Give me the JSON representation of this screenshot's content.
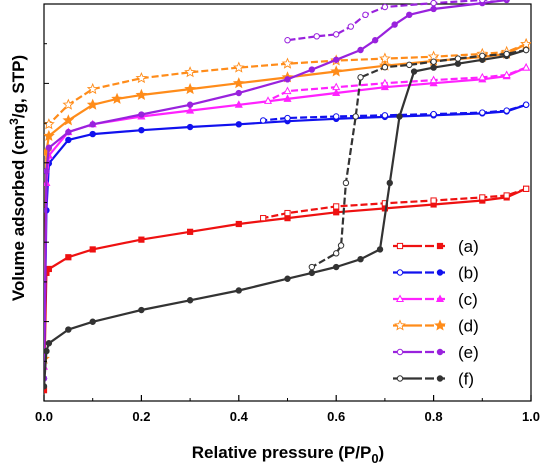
{
  "chart_data": {
    "type": "line",
    "xlabel": "Relative pressure (P/P0)",
    "ylabel": "Volume adsorbed (cm3/g, STP)",
    "xlim": [
      0.0,
      1.0
    ],
    "ylim": [
      0,
      100
    ],
    "y_tick_labels_shown": false,
    "x_ticks": [
      "0.0",
      "0.2",
      "0.4",
      "0.6",
      "0.8",
      "1.0"
    ],
    "legend_position": "bottom-right",
    "series": [
      {
        "name": "(a)",
        "color": "#ee1111",
        "marker": "square",
        "adsorption": [
          [
            0.0,
            2
          ],
          [
            0.005,
            32
          ],
          [
            0.01,
            33
          ],
          [
            0.05,
            36
          ],
          [
            0.1,
            38
          ],
          [
            0.2,
            40.5
          ],
          [
            0.3,
            42.5
          ],
          [
            0.4,
            44.5
          ],
          [
            0.5,
            46
          ],
          [
            0.6,
            47.5
          ],
          [
            0.7,
            48.5
          ],
          [
            0.8,
            49.5
          ],
          [
            0.9,
            50.5
          ],
          [
            0.95,
            51.3
          ],
          [
            0.99,
            53.5
          ]
        ],
        "desorption": [
          [
            0.99,
            53.5
          ],
          [
            0.95,
            51.8
          ],
          [
            0.9,
            51.3
          ],
          [
            0.8,
            50.5
          ],
          [
            0.7,
            49.8
          ],
          [
            0.6,
            49
          ],
          [
            0.5,
            47.3
          ],
          [
            0.45,
            46
          ]
        ]
      },
      {
        "name": "(b)",
        "color": "#1111ee",
        "marker": "circle",
        "adsorption": [
          [
            0.0,
            5
          ],
          [
            0.005,
            48
          ],
          [
            0.01,
            60
          ],
          [
            0.05,
            66
          ],
          [
            0.1,
            67.5
          ],
          [
            0.2,
            68.5
          ],
          [
            0.3,
            69.3
          ],
          [
            0.4,
            70
          ],
          [
            0.5,
            70.8
          ],
          [
            0.6,
            71.4
          ],
          [
            0.7,
            71.9
          ],
          [
            0.8,
            72.3
          ],
          [
            0.9,
            72.8
          ],
          [
            0.95,
            73.3
          ],
          [
            0.99,
            75
          ]
        ],
        "desorption": [
          [
            0.99,
            75
          ],
          [
            0.95,
            73.5
          ],
          [
            0.9,
            73
          ],
          [
            0.8,
            72.6
          ],
          [
            0.7,
            72.3
          ],
          [
            0.6,
            72
          ],
          [
            0.5,
            71.6
          ],
          [
            0.45,
            71
          ]
        ]
      },
      {
        "name": "(c)",
        "color": "#ff22ff",
        "marker": "triangle",
        "adsorption": [
          [
            0.0,
            8
          ],
          [
            0.005,
            55
          ],
          [
            0.01,
            62
          ],
          [
            0.05,
            68
          ],
          [
            0.1,
            70
          ],
          [
            0.2,
            72
          ],
          [
            0.3,
            73.5
          ],
          [
            0.4,
            75
          ],
          [
            0.5,
            76.5
          ],
          [
            0.6,
            78
          ],
          [
            0.7,
            79.5
          ],
          [
            0.8,
            80.5
          ],
          [
            0.9,
            81.5
          ],
          [
            0.95,
            82.3
          ],
          [
            0.99,
            84.5
          ]
        ],
        "desorption": [
          [
            0.99,
            84.5
          ],
          [
            0.95,
            82.6
          ],
          [
            0.9,
            82
          ],
          [
            0.8,
            81.3
          ],
          [
            0.7,
            80.5
          ],
          [
            0.6,
            79.5
          ],
          [
            0.5,
            78.5
          ],
          [
            0.46,
            76
          ]
        ]
      },
      {
        "name": "(d)",
        "color": "#ff8c1a",
        "marker": "star",
        "adsorption": [
          [
            0.0,
            10
          ],
          [
            0.005,
            63
          ],
          [
            0.01,
            67
          ],
          [
            0.05,
            71
          ],
          [
            0.1,
            75
          ],
          [
            0.15,
            76.5
          ],
          [
            0.2,
            77.5
          ],
          [
            0.3,
            79
          ],
          [
            0.4,
            80.5
          ],
          [
            0.5,
            82
          ],
          [
            0.6,
            83.5
          ],
          [
            0.7,
            85
          ],
          [
            0.8,
            86.2
          ],
          [
            0.9,
            87.2
          ],
          [
            0.95,
            88
          ],
          [
            0.99,
            90.5
          ]
        ],
        "desorption": [
          [
            0.99,
            90.5
          ],
          [
            0.95,
            88.5
          ],
          [
            0.9,
            88
          ],
          [
            0.8,
            87.3
          ],
          [
            0.7,
            86.8
          ],
          [
            0.6,
            86.3
          ],
          [
            0.5,
            85.5
          ],
          [
            0.4,
            84.5
          ],
          [
            0.3,
            83.3
          ],
          [
            0.2,
            81.8
          ],
          [
            0.1,
            79
          ],
          [
            0.05,
            75
          ],
          [
            0.01,
            70
          ]
        ]
      },
      {
        "name": "(e)",
        "color": "#9922dd",
        "marker": "circle",
        "adsorption": [
          [
            0.0,
            5
          ],
          [
            0.005,
            58
          ],
          [
            0.01,
            64
          ],
          [
            0.05,
            68
          ],
          [
            0.1,
            70
          ],
          [
            0.2,
            72.5
          ],
          [
            0.3,
            75
          ],
          [
            0.4,
            78
          ],
          [
            0.5,
            81.5
          ],
          [
            0.55,
            84
          ],
          [
            0.6,
            86.5
          ],
          [
            0.65,
            89
          ],
          [
            0.68,
            91.5
          ],
          [
            0.72,
            95.5
          ],
          [
            0.75,
            98
          ],
          [
            0.8,
            99.5
          ],
          [
            0.9,
            101
          ],
          [
            0.95,
            101.8
          ],
          [
            0.99,
            104
          ]
        ],
        "desorption": [
          [
            0.99,
            104
          ],
          [
            0.95,
            102.3
          ],
          [
            0.9,
            101.8
          ],
          [
            0.8,
            101
          ],
          [
            0.7,
            100
          ],
          [
            0.66,
            98
          ],
          [
            0.63,
            95
          ],
          [
            0.6,
            93
          ],
          [
            0.56,
            92.5
          ],
          [
            0.5,
            91.5
          ]
        ]
      },
      {
        "name": "(f)",
        "color": "#333333",
        "marker": "circle",
        "adsorption": [
          [
            0.0,
            3
          ],
          [
            0.005,
            12
          ],
          [
            0.01,
            14
          ],
          [
            0.05,
            17.5
          ],
          [
            0.1,
            19.5
          ],
          [
            0.2,
            22.5
          ],
          [
            0.3,
            25
          ],
          [
            0.4,
            27.5
          ],
          [
            0.5,
            30.5
          ],
          [
            0.55,
            32
          ],
          [
            0.6,
            33.5
          ],
          [
            0.65,
            35.5
          ],
          [
            0.69,
            38
          ],
          [
            0.71,
            55
          ],
          [
            0.73,
            72
          ],
          [
            0.76,
            83.5
          ],
          [
            0.8,
            84.5
          ],
          [
            0.85,
            85.5
          ],
          [
            0.9,
            86.5
          ],
          [
            0.95,
            87.5
          ],
          [
            0.99,
            89
          ]
        ],
        "desorption": [
          [
            0.99,
            89
          ],
          [
            0.95,
            88
          ],
          [
            0.9,
            87.5
          ],
          [
            0.85,
            86.8
          ],
          [
            0.8,
            86
          ],
          [
            0.75,
            85.2
          ],
          [
            0.7,
            84.6
          ],
          [
            0.65,
            82
          ],
          [
            0.64,
            72
          ],
          [
            0.62,
            55
          ],
          [
            0.61,
            39
          ],
          [
            0.6,
            37
          ],
          [
            0.55,
            33.5
          ]
        ]
      }
    ]
  }
}
